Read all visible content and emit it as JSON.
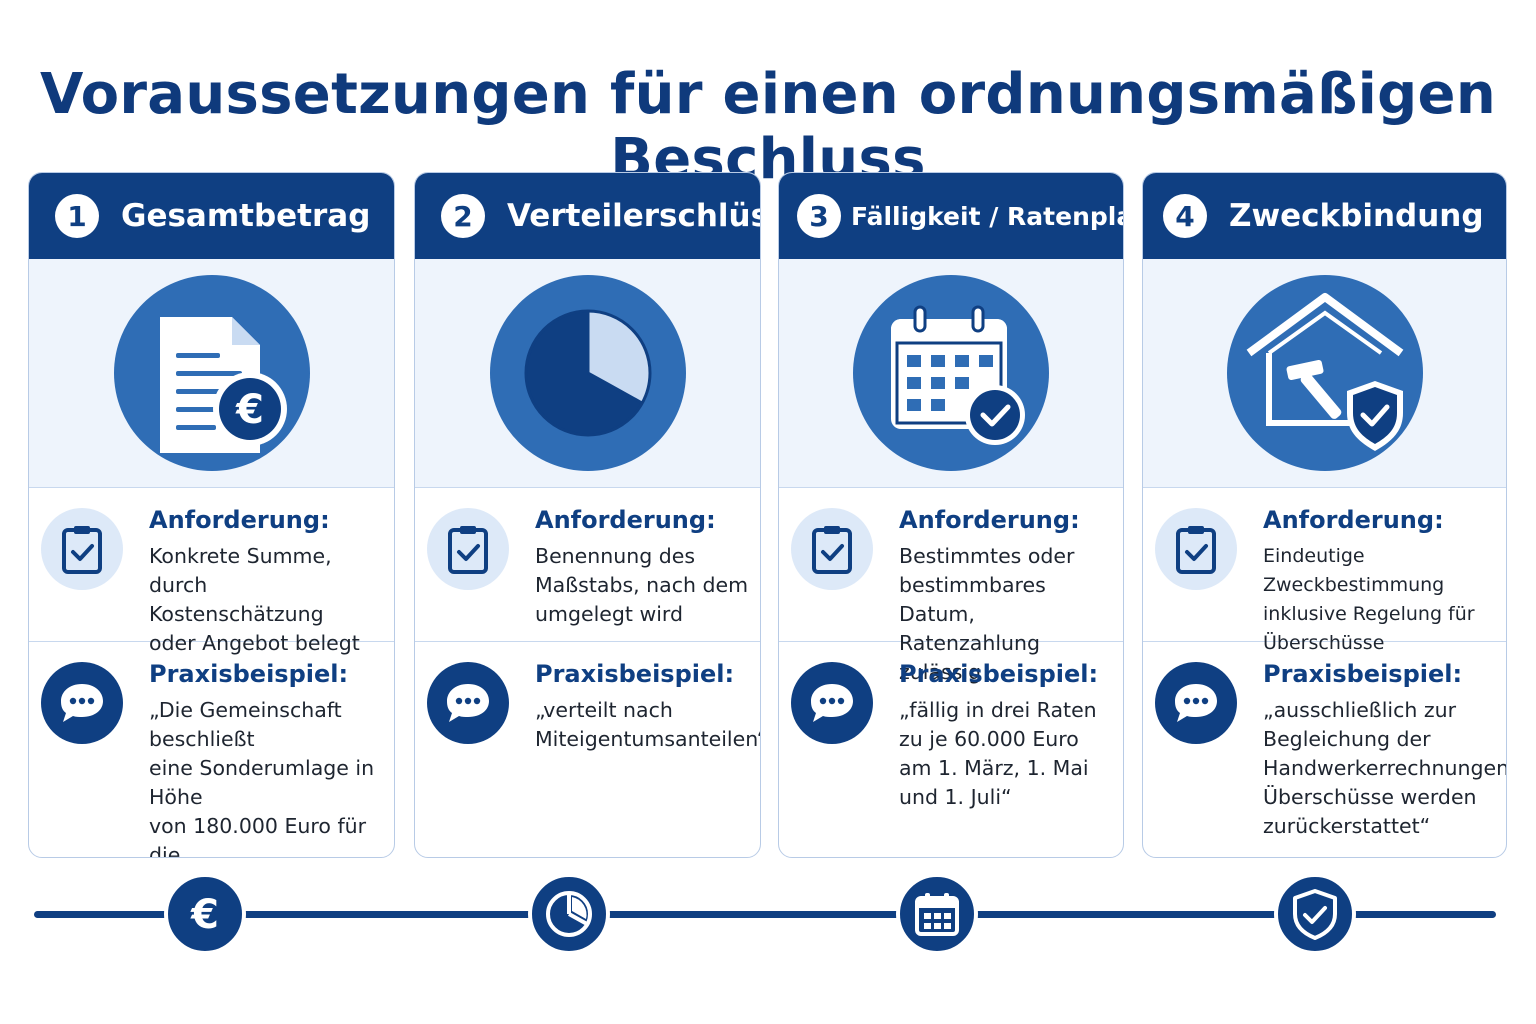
{
  "title": "Voraussetzungen für einen ordnungsmäßigen Beschluss",
  "colors": {
    "primary": "#0f3f82",
    "accent": "#2f6db5",
    "light": "#eef4fc"
  },
  "cards": [
    {
      "number": "1",
      "title": "Gesamtbetrag",
      "icon": "document-euro-icon",
      "requirement_label": "Anforderung:",
      "requirement_text": "Konkrete Summe,\ndurch Kostenschätzung\noder Angebot belegt",
      "example_label": "Praxisbeispiel:",
      "example_text": "„Die Gemeinschaft beschließt\neine Sonderumlage in Höhe\nvon 180.000 Euro für die\nDachsanierung gemäß\nAngebot vom …“"
    },
    {
      "number": "2",
      "title": "Verteilerschlüssel",
      "icon": "pie-chart-icon",
      "requirement_label": "Anforderung:",
      "requirement_text": "Benennung des\nMaßstabs, nach dem\numgelegt wird",
      "example_label": "Praxisbeispiel:",
      "example_text": "„verteilt nach\nMiteigentumsanteilen“"
    },
    {
      "number": "3",
      "title": "Fälligkeit / Ratenplan",
      "icon": "calendar-check-icon",
      "requirement_label": "Anforderung:",
      "requirement_text": "Bestimmtes oder\nbestimmbares Datum,\nRatenzahlung zulässig",
      "example_label": "Praxisbeispiel:",
      "example_text": "„fällig in drei Raten\nzu je 60.000 Euro\nam 1. März, 1. Mai\nund 1. Juli“"
    },
    {
      "number": "4",
      "title": "Zweckbindung",
      "icon": "house-shield-icon",
      "requirement_label": "Anforderung:",
      "requirement_text": "Eindeutige Zweckbestimmung\ninklusive Regelung für\nÜberschüsse",
      "example_label": "Praxisbeispiel:",
      "example_text": "„ausschließlich zur\nBegleichung der\nHandwerkerrechnungen;\nÜberschüsse werden\nzurückerstattet“"
    }
  ],
  "timeline": {
    "icons": [
      "euro-icon",
      "pie-chart-icon",
      "calendar-icon",
      "shield-check-icon"
    ]
  }
}
